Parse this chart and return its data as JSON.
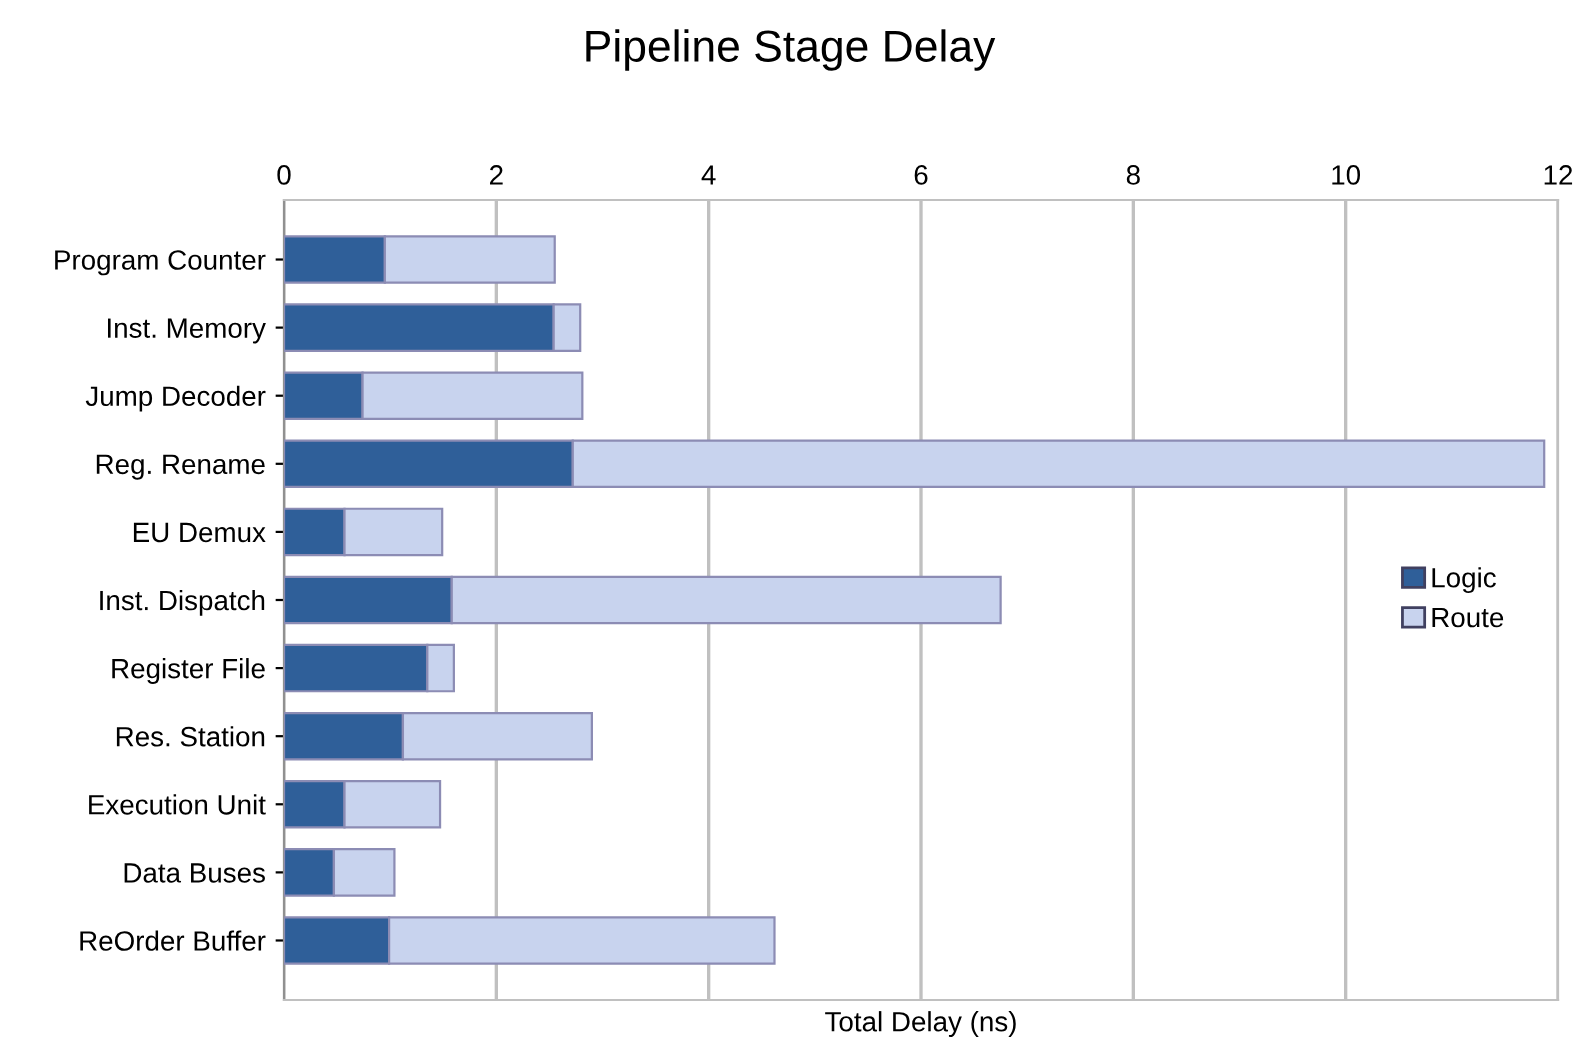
{
  "chart_data": {
    "type": "bar",
    "title": "Pipeline Stage Delay",
    "xlabel": "Total Delay (ns)",
    "orientation": "horizontal",
    "stacked": true,
    "categories": [
      "Program Counter",
      "Inst. Memory",
      "Jump Decoder",
      "Reg. Rename",
      "EU Demux",
      "Inst. Dispatch",
      "Register File",
      "Res. Station",
      "Execution Unit",
      "Data Buses",
      "ReOrder Buffer"
    ],
    "series": [
      {
        "name": "Logic",
        "color": "#2f5f99",
        "values": [
          0.95,
          2.54,
          0.74,
          2.72,
          0.57,
          1.58,
          1.35,
          1.12,
          0.57,
          0.47,
          0.99
        ]
      },
      {
        "name": "Route",
        "color": "#c8d3ee",
        "values": [
          1.6,
          0.25,
          2.07,
          9.15,
          0.92,
          5.17,
          0.25,
          1.78,
          0.9,
          0.57,
          3.63
        ]
      }
    ],
    "xlim": [
      0,
      12
    ],
    "xticks": [
      0,
      2,
      4,
      6,
      8,
      10,
      12
    ],
    "grid": "x",
    "legend": "right"
  }
}
